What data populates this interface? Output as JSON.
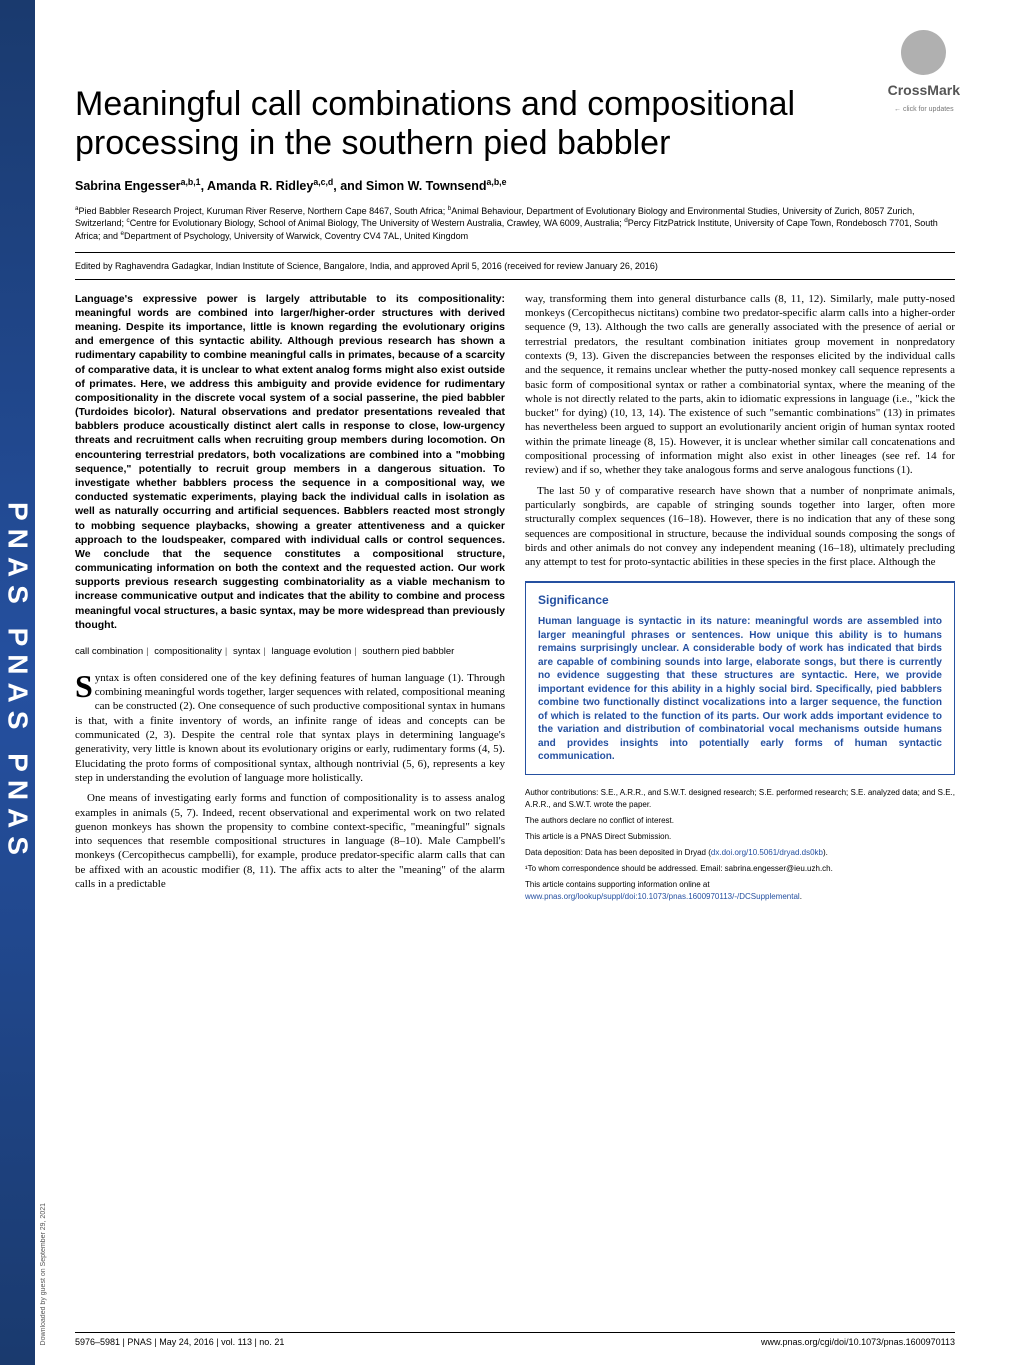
{
  "crossmark": {
    "label": "CrossMark",
    "sub": "← click for updates"
  },
  "sidebar": {
    "text": "PNAS  PNAS  PNAS"
  },
  "download": "Downloaded by guest on September 29, 2021",
  "title": "Meaningful call combinations and compositional processing in the southern pied babbler",
  "authors_html": "Sabrina Engesser<sup>a,b,1</sup>, Amanda R. Ridley<sup>a,c,d</sup>, and Simon W. Townsend<sup>a,b,e</sup>",
  "affiliations_html": "<sup>a</sup>Pied Babbler Research Project, Kuruman River Reserve, Northern Cape 8467, South Africa; <sup>b</sup>Animal Behaviour, Department of Evolutionary Biology and Environmental Studies, University of Zurich, 8057 Zurich, Switzerland; <sup>c</sup>Centre for Evolutionary Biology, School of Animal Biology, The University of Western Australia, Crawley, WA 6009, Australia; <sup>d</sup>Percy FitzPatrick Institute, University of Cape Town, Rondebosch 7701, South Africa; and <sup>e</sup>Department of Psychology, University of Warwick, Coventry CV4 7AL, United Kingdom",
  "edited": "Edited by Raghavendra Gadagkar, Indian Institute of Science, Bangalore, India, and approved April 5, 2016 (received for review January 26, 2016)",
  "abstract": "Language's expressive power is largely attributable to its compositionality: meaningful words are combined into larger/higher-order structures with derived meaning. Despite its importance, little is known regarding the evolutionary origins and emergence of this syntactic ability. Although previous research has shown a rudimentary capability to combine meaningful calls in primates, because of a scarcity of comparative data, it is unclear to what extent analog forms might also exist outside of primates. Here, we address this ambiguity and provide evidence for rudimentary compositionality in the discrete vocal system of a social passerine, the pied babbler (Turdoides bicolor). Natural observations and predator presentations revealed that babblers produce acoustically distinct alert calls in response to close, low-urgency threats and recruitment calls when recruiting group members during locomotion. On encountering terrestrial predators, both vocalizations are combined into a \"mobbing sequence,\" potentially to recruit group members in a dangerous situation. To investigate whether babblers process the sequence in a compositional way, we conducted systematic experiments, playing back the individual calls in isolation as well as naturally occurring and artificial sequences. Babblers reacted most strongly to mobbing sequence playbacks, showing a greater attentiveness and a quicker approach to the loudspeaker, compared with individual calls or control sequences. We conclude that the sequence constitutes a compositional structure, communicating information on both the context and the requested action. Our work supports previous research suggesting combinatoriality as a viable mechanism to increase communicative output and indicates that the ability to combine and process meaningful vocal structures, a basic syntax, may be more widespread than previously thought.",
  "keywords": [
    "call combination",
    "compositionality",
    "syntax",
    "language evolution",
    "southern pied babbler"
  ],
  "body_left_p1": "yntax is often considered one of the key defining features of human language (1). Through combining meaningful words together, larger sequences with related, compositional meaning can be constructed (2). One consequence of such productive compositional syntax in humans is that, with a finite inventory of words, an infinite range of ideas and concepts can be communicated (2, 3). Despite the central role that syntax plays in determining language's generativity, very little is known about its evolutionary origins or early, rudimentary forms (4, 5). Elucidating the proto forms of compositional syntax, although nontrivial (5, 6), represents a key step in understanding the evolution of language more holistically.",
  "body_left_p2": "One means of investigating early forms and function of compositionality is to assess analog examples in animals (5, 7). Indeed, recent observational and experimental work on two related guenon monkeys has shown the propensity to combine context-specific, \"meaningful\" signals into sequences that resemble compositional structures in language (8–10). Male Campbell's monkeys (Cercopithecus campbelli), for example, produce predator-specific alarm calls that can be affixed with an acoustic modifier (8, 11). The affix acts to alter the \"meaning\" of the alarm calls in a predictable",
  "body_right_p1": "way, transforming them into general disturbance calls (8, 11, 12). Similarly, male putty-nosed monkeys (Cercopithecus nictitans) combine two predator-specific alarm calls into a higher-order sequence (9, 13). Although the two calls are generally associated with the presence of aerial or terrestrial predators, the resultant combination initiates group movement in nonpredatory contexts (9, 13). Given the discrepancies between the responses elicited by the individual calls and the sequence, it remains unclear whether the putty-nosed monkey call sequence represents a basic form of compositional syntax or rather a combinatorial syntax, where the meaning of the whole is not directly related to the parts, akin to idiomatic expressions in language (i.e., \"kick the bucket\" for dying) (10, 13, 14). The existence of such \"semantic combinations\" (13) in primates has nevertheless been argued to support an evolutionarily ancient origin of human syntax rooted within the primate lineage (8, 15). However, it is unclear whether similar call concatenations and compositional processing of information might also exist in other lineages (see ref. 14 for review) and if so, whether they take analogous forms and serve analogous functions (1).",
  "body_right_p2": "The last 50 y of comparative research have shown that a number of nonprimate animals, particularly songbirds, are capable of stringing sounds together into larger, often more structurally complex sequences (16–18). However, there is no indication that any of these song sequences are compositional in structure, because the individual sounds composing the songs of birds and other animals do not convey any independent meaning (16–18), ultimately precluding any attempt to test for proto-syntactic abilities in these species in the first place. Although the",
  "significance": {
    "title": "Significance",
    "text": "Human language is syntactic in its nature: meaningful words are assembled into larger meaningful phrases or sentences. How unique this ability is to humans remains surprisingly unclear. A considerable body of work has indicated that birds are capable of combining sounds into large, elaborate songs, but there is currently no evidence suggesting that these structures are syntactic. Here, we provide important evidence for this ability in a highly social bird. Specifically, pied babblers combine two functionally distinct vocalizations into a larger sequence, the function of which is related to the function of its parts. Our work adds important evidence to the variation and distribution of combinatorial vocal mechanisms outside humans and provides insights into potentially early forms of human syntactic communication."
  },
  "meta": {
    "contributions": "Author contributions: S.E., A.R.R., and S.W.T. designed research; S.E. performed research; S.E. analyzed data; and S.E., A.R.R., and S.W.T. wrote the paper.",
    "conflict": "The authors declare no conflict of interest.",
    "submission": "This article is a PNAS Direct Submission.",
    "data_deposition": "Data deposition: Data has been deposited in Dryad (",
    "data_link": "dx.doi.org/10.5061/dryad.ds0kb",
    "data_end": ").",
    "correspondence": "¹To whom correspondence should be addressed. Email: sabrina.engesser@ieu.uzh.ch.",
    "supporting": "This article contains supporting information online at ",
    "supporting_link": "www.pnas.org/lookup/suppl/doi:10.1073/pnas.1600970113/-/DCSupplemental",
    "supporting_end": "."
  },
  "footer": {
    "left": "5976–5981  |  PNAS  |  May 24, 2016  |  vol. 113  |  no. 21",
    "right": "www.pnas.org/cgi/doi/10.1073/pnas.1600970113"
  }
}
